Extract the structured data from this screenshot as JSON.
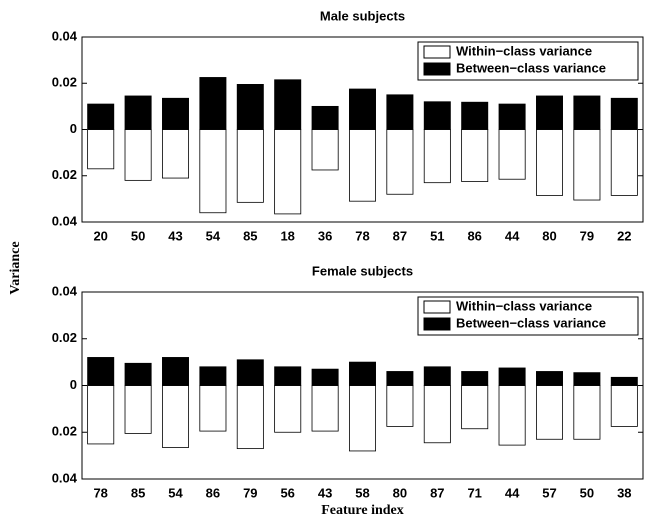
{
  "ylabel": "Variance",
  "chart_data": [
    {
      "type": "bar",
      "title": "Male subjects",
      "categories": [
        "20",
        "50",
        "43",
        "54",
        "85",
        "18",
        "36",
        "78",
        "87",
        "51",
        "86",
        "44",
        "80",
        "79",
        "22"
      ],
      "series": [
        {
          "name": "Within−class variance",
          "color": "#ffffff",
          "values": [
            -0.017,
            -0.022,
            -0.021,
            -0.036,
            -0.0315,
            -0.0365,
            -0.0175,
            -0.031,
            -0.028,
            -0.023,
            -0.0225,
            -0.0215,
            -0.0285,
            -0.0305,
            -0.0285
          ]
        },
        {
          "name": "Between−class variance",
          "color": "#000000",
          "values": [
            0.011,
            0.0145,
            0.0135,
            0.0225,
            0.0195,
            0.0215,
            0.01,
            0.0175,
            0.015,
            0.012,
            0.0118,
            0.011,
            0.0145,
            0.0145,
            0.0135
          ]
        }
      ],
      "ylim": [
        -0.04,
        0.04
      ],
      "yticks": [
        {
          "value": -0.04,
          "label": "0.04"
        },
        {
          "value": -0.02,
          "label": "0.02"
        },
        0,
        0.02,
        0.04
      ],
      "legend": "upper right"
    },
    {
      "type": "bar",
      "title": "Female subjects",
      "xlabel": "Feature index",
      "categories": [
        "78",
        "85",
        "54",
        "86",
        "79",
        "56",
        "43",
        "58",
        "80",
        "87",
        "71",
        "44",
        "57",
        "50",
        "38"
      ],
      "series": [
        {
          "name": "Within−class variance",
          "color": "#ffffff",
          "values": [
            -0.025,
            -0.0205,
            -0.0265,
            -0.0195,
            -0.027,
            -0.02,
            -0.0195,
            -0.028,
            -0.0175,
            -0.0245,
            -0.0185,
            -0.0255,
            -0.023,
            -0.023,
            -0.0175
          ]
        },
        {
          "name": "Between−class variance",
          "color": "#000000",
          "values": [
            0.012,
            0.0095,
            0.012,
            0.008,
            0.011,
            0.008,
            0.007,
            0.01,
            0.006,
            0.008,
            0.006,
            0.0075,
            0.006,
            0.0055,
            0.0035
          ]
        }
      ],
      "ylim": [
        -0.04,
        0.04
      ],
      "yticks": [
        {
          "value": -0.04,
          "label": "0.04"
        },
        {
          "value": -0.02,
          "label": "0.02"
        },
        0,
        0.02,
        0.04
      ],
      "legend": "upper right"
    }
  ]
}
